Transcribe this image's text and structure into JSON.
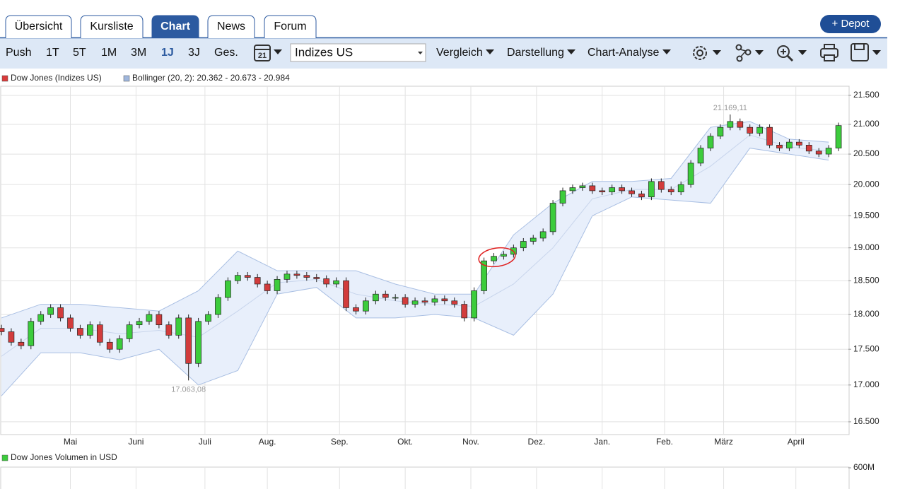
{
  "tabs": [
    "Übersicht",
    "Kursliste",
    "Chart",
    "News",
    "Forum"
  ],
  "active_tab": 2,
  "depot_button": "+ Depot",
  "toolbar": {
    "ranges": [
      "Push",
      "1T",
      "5T",
      "1M",
      "3M",
      "1J",
      "3J",
      "Ges."
    ],
    "active_range": 5,
    "calendar_day": "21",
    "index_select": "Indizes US",
    "menus": [
      "Vergleich",
      "Darstellung",
      "Chart-Analyse"
    ]
  },
  "chart_data": {
    "type": "candlestick",
    "legend": [
      {
        "name": "Dow Jones (Indizes US)",
        "color": "#d93a3a"
      },
      {
        "name": "Bollinger (20, 2): 20.362 - 20.673 - 20.984",
        "color": "#9fb6dc"
      }
    ],
    "up_color": "#3ccc3c",
    "down_color": "#d23c3c",
    "x": [
      0,
      3,
      6,
      9,
      12,
      15,
      18,
      21,
      24,
      27,
      30,
      33,
      36,
      39,
      42,
      45,
      48,
      51,
      54,
      57,
      60,
      63,
      66,
      69,
      72,
      75,
      78,
      81,
      84,
      87,
      90,
      93,
      96,
      99,
      102,
      105,
      108,
      111,
      114,
      117,
      120,
      123,
      126,
      129,
      132,
      135,
      138,
      141,
      144,
      147,
      150,
      153,
      156,
      159,
      162,
      165,
      168,
      171,
      174,
      177,
      180,
      183,
      186,
      189,
      192,
      195,
      198,
      201,
      204,
      207,
      210,
      213,
      216,
      219,
      222,
      225,
      228,
      231,
      234,
      237,
      240,
      243,
      246,
      249,
      252,
      255
    ],
    "open": [
      17800,
      17750,
      17600,
      17550,
      17900,
      18000,
      18100,
      17950,
      17800,
      17700,
      17850,
      17600,
      17500,
      17650,
      17850,
      17900,
      18000,
      17850,
      17700,
      17950,
      17300,
      17900,
      18000,
      18250,
      18500,
      18580,
      18550,
      18450,
      18350,
      18520,
      18600,
      18580,
      18550,
      18530,
      18450,
      18500,
      18100,
      18050,
      18200,
      18300,
      18250,
      18250,
      18150,
      18200,
      18180,
      18230,
      18200,
      18150,
      17950,
      18350,
      18800,
      18870,
      18900,
      19000,
      19100,
      19150,
      19250,
      19700,
      19900,
      19950,
      19980,
      19900,
      19880,
      19950,
      19900,
      19850,
      19800,
      20050,
      19920,
      19880,
      20000,
      20350,
      20600,
      20800,
      20950,
      21050,
      20950,
      20850,
      20950,
      20650,
      20600,
      20700,
      20650,
      20550,
      20500,
      20600
    ],
    "high": [
      17850,
      17800,
      17650,
      17950,
      18050,
      18150,
      18150,
      18000,
      17850,
      17900,
      17900,
      17650,
      17700,
      17900,
      17950,
      18050,
      18050,
      17900,
      18000,
      18000,
      17950,
      18050,
      18300,
      18550,
      18630,
      18630,
      18600,
      18500,
      18570,
      18650,
      18650,
      18630,
      18600,
      18580,
      18550,
      18550,
      18150,
      18250,
      18350,
      18350,
      18300,
      18300,
      18250,
      18250,
      18280,
      18280,
      18250,
      18200,
      18400,
      18850,
      18920,
      18950,
      19050,
      19150,
      19200,
      19300,
      19750,
      19950,
      20000,
      20030,
      20030,
      19950,
      20000,
      20000,
      19950,
      19900,
      20100,
      20100,
      19970,
      20050,
      20400,
      20650,
      20850,
      21000,
      21169.11,
      21100,
      21000,
      21000,
      21000,
      20700,
      20750,
      20750,
      20700,
      20600,
      20650,
      21030
    ],
    "low": [
      17700,
      17550,
      17500,
      17500,
      17850,
      17950,
      17900,
      17750,
      17650,
      17650,
      17550,
      17450,
      17450,
      17600,
      17800,
      17850,
      17800,
      17650,
      17650,
      17063.08,
      17250,
      17850,
      17950,
      18200,
      18450,
      18500,
      18400,
      18300,
      18300,
      18470,
      18530,
      18500,
      18480,
      18400,
      18400,
      18050,
      18000,
      18000,
      18150,
      18200,
      18200,
      18100,
      18100,
      18130,
      18130,
      18150,
      18100,
      17900,
      17900,
      18300,
      18750,
      18820,
      18850,
      18950,
      19050,
      19100,
      19200,
      19650,
      19850,
      19900,
      19850,
      19830,
      19830,
      19850,
      19800,
      19750,
      19750,
      19870,
      19830,
      19830,
      19950,
      20300,
      20550,
      20750,
      20900,
      20900,
      20800,
      20800,
      20600,
      20550,
      20550,
      20600,
      20500,
      20450,
      20450,
      20550
    ],
    "close": [
      17750,
      17600,
      17550,
      17900,
      18000,
      18100,
      17950,
      17800,
      17700,
      17850,
      17600,
      17500,
      17650,
      17850,
      17900,
      18000,
      17850,
      17700,
      17950,
      17300,
      17900,
      18000,
      18250,
      18500,
      18580,
      18550,
      18450,
      18350,
      18520,
      18600,
      18580,
      18550,
      18530,
      18450,
      18500,
      18100,
      18050,
      18200,
      18300,
      18250,
      18250,
      18150,
      18200,
      18180,
      18230,
      18200,
      18150,
      17950,
      18350,
      18800,
      18870,
      18900,
      19000,
      19100,
      19150,
      19250,
      19700,
      19900,
      19950,
      19980,
      19900,
      19880,
      19950,
      19900,
      19850,
      19800,
      20050,
      19920,
      19880,
      20000,
      20350,
      20600,
      20800,
      20950,
      21050,
      20950,
      20850,
      20950,
      20650,
      20600,
      20700,
      20650,
      20550,
      20500,
      20600,
      20980
    ],
    "bands": {
      "x": [
        0,
        12,
        24,
        36,
        48,
        60,
        72,
        84,
        96,
        108,
        120,
        132,
        144,
        156,
        168,
        180,
        192,
        204,
        216,
        228,
        240,
        252
      ],
      "upper": [
        17950,
        18150,
        18150,
        18100,
        18050,
        18350,
        18950,
        18650,
        18650,
        18650,
        18450,
        18300,
        18300,
        19200,
        19700,
        20050,
        20050,
        20100,
        20950,
        21050,
        20750,
        20700
      ],
      "middle": [
        17400,
        17800,
        17800,
        17720,
        17770,
        17670,
        18050,
        18470,
        18520,
        18300,
        18200,
        18150,
        18120,
        18450,
        19000,
        19770,
        19920,
        19920,
        20300,
        20820,
        20620,
        20550
      ],
      "lower": [
        16850,
        17450,
        17450,
        17350,
        17500,
        17000,
        17200,
        18300,
        18400,
        17950,
        17950,
        18000,
        17950,
        17700,
        18300,
        19500,
        19800,
        19750,
        19700,
        20600,
        20500,
        20400
      ]
    },
    "xlim": [
      0,
      258
    ],
    "xticks": [
      {
        "value": 21,
        "label": "Mai"
      },
      {
        "value": 41,
        "label": "Juni"
      },
      {
        "value": 62,
        "label": "Juli"
      },
      {
        "value": 81,
        "label": "Aug."
      },
      {
        "value": 103,
        "label": "Sep."
      },
      {
        "value": 123,
        "label": "Okt."
      },
      {
        "value": 143,
        "label": "Nov."
      },
      {
        "value": 163,
        "label": "Dez."
      },
      {
        "value": 183,
        "label": "Jan."
      },
      {
        "value": 202,
        "label": "Feb."
      },
      {
        "value": 220,
        "label": "März"
      },
      {
        "value": 242,
        "label": "April"
      }
    ],
    "ylim": [
      16330,
      21660
    ],
    "yticks": [
      {
        "value": 21500,
        "label": "21.500"
      },
      {
        "value": 21000,
        "label": "21.000"
      },
      {
        "value": 20500,
        "label": "20.500"
      },
      {
        "value": 20000,
        "label": "20.000"
      },
      {
        "value": 19500,
        "label": "19.500"
      },
      {
        "value": 19000,
        "label": "19.000"
      },
      {
        "value": 18500,
        "label": "18.500"
      },
      {
        "value": 18000,
        "label": "18.000"
      },
      {
        "value": 17500,
        "label": "17.500"
      },
      {
        "value": 17000,
        "label": "17.000"
      },
      {
        "value": 16500,
        "label": "16.500"
      }
    ],
    "log_scale": true,
    "grid": true,
    "annotations": [
      {
        "x": 222,
        "value": 21169.11,
        "label": "21.169,11",
        "position": "above"
      },
      {
        "x": 57,
        "value": 17063.08,
        "label": "17.063,08",
        "position": "below"
      }
    ]
  },
  "volume": {
    "title": "Dow Jones Volumen in USD",
    "color": "#3ccc3c",
    "yticks": [
      {
        "value": 600000000,
        "label": "600M"
      }
    ]
  }
}
